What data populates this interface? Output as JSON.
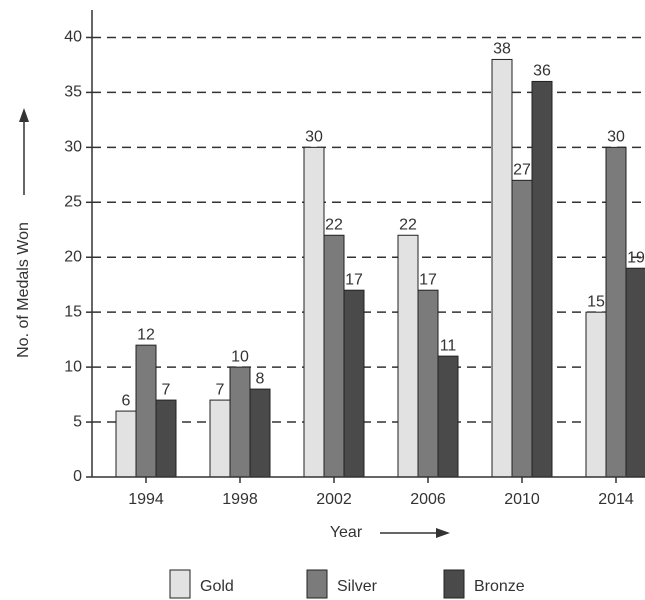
{
  "chart_data": {
    "type": "bar",
    "x_label": "Year",
    "y_label": "No. of Medals Won",
    "categories": [
      "1994",
      "1998",
      "2002",
      "2006",
      "2010",
      "2014"
    ],
    "series": [
      {
        "name": "Gold",
        "color": "#e2e2e2",
        "values": [
          6,
          7,
          30,
          22,
          38,
          15
        ]
      },
      {
        "name": "Silver",
        "color": "#7b7b7b",
        "values": [
          12,
          10,
          22,
          17,
          27,
          30
        ]
      },
      {
        "name": "Bronze",
        "color": "#4a4a4a",
        "values": [
          7,
          8,
          17,
          11,
          36,
          19
        ]
      }
    ],
    "ylim": [
      0,
      42.5
    ],
    "yticks": [
      0,
      5,
      10,
      15,
      20,
      25,
      30,
      35,
      40
    ],
    "grid": true
  }
}
